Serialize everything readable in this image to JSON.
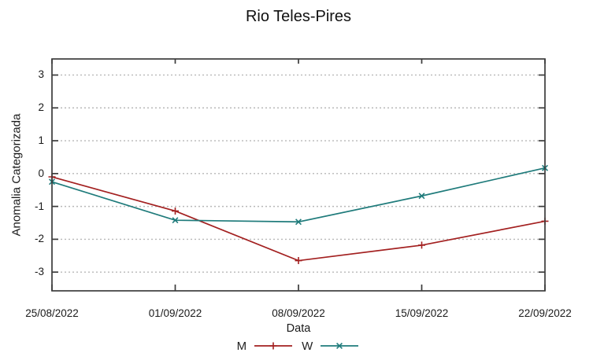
{
  "chart_data": {
    "type": "line",
    "title": "Rio Teles-Pires",
    "xlabel": "Data",
    "ylabel": "Anomalia Categorizada",
    "categories": [
      "25/08/2022",
      "01/09/2022",
      "08/09/2022",
      "15/09/2022",
      "22/09/2022"
    ],
    "series": [
      {
        "name": "M",
        "color": "#a32020",
        "marker": "plus",
        "values": [
          -0.1,
          -1.14,
          -2.65,
          -2.18,
          -1.45
        ]
      },
      {
        "name": "W",
        "color": "#1f7b7b",
        "marker": "cross",
        "values": [
          -0.25,
          -1.42,
          -1.47,
          -0.68,
          0.17
        ]
      }
    ],
    "yticks": [
      3,
      2,
      1,
      0,
      -1,
      -2,
      -3
    ],
    "ylim": [
      -3.57,
      3.49
    ],
    "grid": "horizontal-dotted",
    "legend_position": "bottom-center",
    "grid_color": "#b8b8b8",
    "axis_color": "#3c3c3c",
    "text_color": "#1a1a1a"
  }
}
